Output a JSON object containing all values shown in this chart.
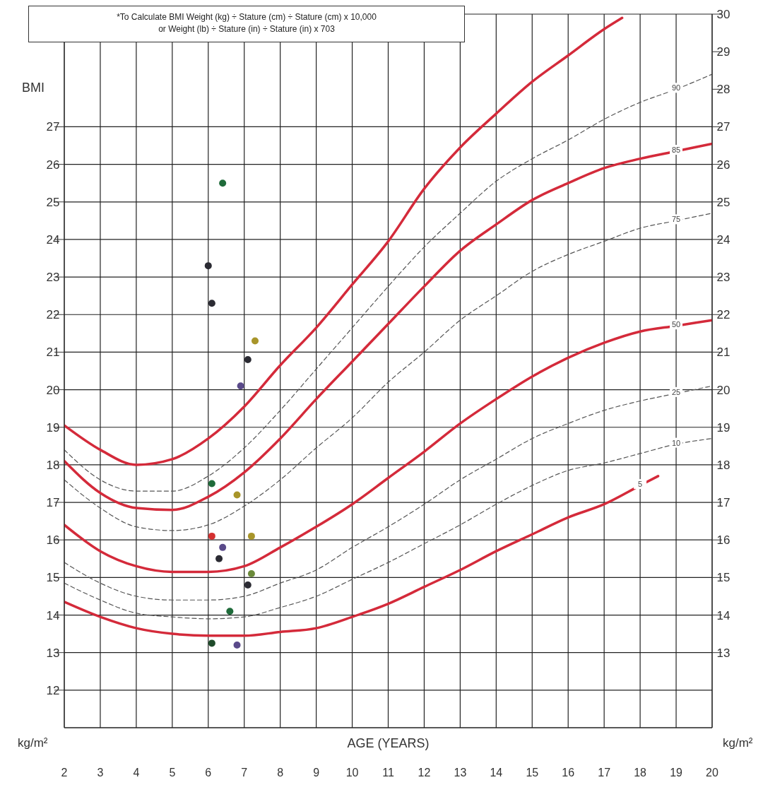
{
  "chart_data": {
    "type": "line",
    "xlabel": "AGE (YEARS)",
    "ylabel": "BMI",
    "y2label": "kg/m²",
    "annotations": [
      "*To Calculate BMI  Weight (kg) ÷ Stature (cm) ÷ Stature (cm) x 10,000",
      "or Weight (lb) ÷ Stature (in) ÷ Stature (in) x 703",
      "kg/m²"
    ],
    "xlim": [
      2,
      20
    ],
    "xticks": [
      2,
      3,
      4,
      5,
      6,
      7,
      8,
      9,
      10,
      11,
      12,
      13,
      14,
      15,
      16,
      17,
      18,
      19,
      20
    ],
    "ylim": [
      11,
      30
    ],
    "yticks": [
      12,
      13,
      14,
      15,
      16,
      17,
      18,
      19,
      20,
      21,
      22,
      23,
      24,
      25,
      26,
      27
    ],
    "y2lim": [
      11,
      30
    ],
    "y2ticks": [
      13,
      14,
      15,
      16,
      17,
      18,
      19,
      20,
      21,
      22,
      23,
      24,
      25,
      26,
      27,
      28,
      29,
      30
    ],
    "grid": true,
    "series": [
      {
        "type": "line",
        "line_style": "solid",
        "color": "#d42a3a",
        "x": [
          2,
          3,
          4,
          5,
          6,
          7,
          8,
          9,
          10,
          11,
          12,
          13,
          14,
          15,
          16,
          17,
          17.5
        ],
        "values": [
          19.05,
          18.4,
          18.0,
          18.15,
          18.7,
          19.55,
          20.65,
          21.65,
          22.8,
          23.95,
          25.35,
          26.45,
          27.35,
          28.2,
          28.9,
          29.6,
          29.9
        ]
      },
      {
        "type": "line",
        "name": "90",
        "line_style": "dashed",
        "color": "#555555",
        "x": [
          2,
          3,
          4,
          5,
          6,
          7,
          8,
          9,
          10,
          11,
          12,
          13,
          14,
          15,
          16,
          17,
          18,
          19,
          20
        ],
        "values": [
          18.4,
          17.6,
          17.3,
          17.3,
          17.7,
          18.45,
          19.45,
          20.55,
          21.65,
          22.75,
          23.8,
          24.7,
          25.55,
          26.15,
          26.65,
          27.2,
          27.65,
          28.0,
          28.4
        ]
      },
      {
        "type": "line",
        "name": "85",
        "line_style": "solid",
        "color": "#d42a3a",
        "x": [
          2,
          3,
          4,
          5,
          6,
          7,
          8,
          9,
          10,
          11,
          12,
          13,
          14,
          15,
          16,
          17,
          18,
          19,
          20
        ],
        "values": [
          18.1,
          17.25,
          16.85,
          16.8,
          17.15,
          17.8,
          18.7,
          19.75,
          20.75,
          21.75,
          22.75,
          23.7,
          24.4,
          25.05,
          25.5,
          25.9,
          26.15,
          26.35,
          26.55
        ]
      },
      {
        "type": "line",
        "name": "75",
        "line_style": "dashed",
        "color": "#555555",
        "x": [
          2,
          3,
          4,
          5,
          6,
          7,
          8,
          9,
          10,
          11,
          12,
          13,
          14,
          15,
          16,
          17,
          18,
          19,
          20
        ],
        "values": [
          17.6,
          16.85,
          16.35,
          16.25,
          16.4,
          16.9,
          17.6,
          18.45,
          19.25,
          20.2,
          21.0,
          21.85,
          22.5,
          23.15,
          23.6,
          23.95,
          24.3,
          24.5,
          24.7
        ]
      },
      {
        "type": "line",
        "name": "50",
        "line_style": "solid",
        "color": "#d42a3a",
        "x": [
          2,
          3,
          4,
          5,
          6,
          7,
          8,
          9,
          10,
          11,
          12,
          13,
          14,
          15,
          16,
          17,
          18,
          19,
          20
        ],
        "values": [
          16.4,
          15.7,
          15.3,
          15.15,
          15.15,
          15.3,
          15.8,
          16.35,
          16.95,
          17.65,
          18.35,
          19.1,
          19.75,
          20.35,
          20.85,
          21.25,
          21.55,
          21.7,
          21.85
        ]
      },
      {
        "type": "line",
        "name": "25",
        "line_style": "dashed",
        "color": "#555555",
        "x": [
          2,
          3,
          4,
          5,
          6,
          7,
          8,
          9,
          10,
          11,
          12,
          13,
          14,
          15,
          16,
          17,
          18,
          19,
          20
        ],
        "values": [
          15.4,
          14.85,
          14.5,
          14.4,
          14.4,
          14.5,
          14.85,
          15.2,
          15.8,
          16.35,
          16.95,
          17.6,
          18.15,
          18.7,
          19.1,
          19.45,
          19.7,
          19.9,
          20.1
        ]
      },
      {
        "type": "line",
        "name": "10",
        "line_style": "dashed",
        "color": "#555555",
        "x": [
          2,
          3,
          4,
          5,
          6,
          7,
          8,
          9,
          10,
          11,
          12,
          13,
          14,
          15,
          16,
          17,
          18,
          19,
          20
        ],
        "values": [
          14.85,
          14.4,
          14.05,
          13.95,
          13.9,
          13.95,
          14.2,
          14.5,
          14.95,
          15.4,
          15.9,
          16.4,
          16.95,
          17.45,
          17.85,
          18.05,
          18.3,
          18.55,
          18.7
        ]
      },
      {
        "type": "line",
        "name": "5",
        "line_style": "solid",
        "color": "#d42a3a",
        "x": [
          2,
          3,
          4,
          5,
          6,
          7,
          8,
          9,
          10,
          11,
          12,
          13,
          14,
          15,
          16,
          17,
          18,
          18.5
        ],
        "values": [
          14.35,
          13.95,
          13.65,
          13.5,
          13.45,
          13.45,
          13.55,
          13.65,
          13.95,
          14.3,
          14.75,
          15.2,
          15.7,
          16.15,
          16.6,
          16.95,
          17.45,
          17.7
        ]
      },
      {
        "type": "scatter",
        "marker": "circle",
        "color": "#2b2b33",
        "x": [
          6.4,
          6.0,
          6.1,
          7.3,
          7.1,
          6.9,
          6.1,
          6.8,
          6.1,
          7.2,
          6.4,
          6.3,
          7.2,
          7.1,
          6.6,
          6.1,
          6.8
        ],
        "values": [
          25.5,
          23.3,
          22.3,
          21.3,
          20.8,
          20.1,
          17.5,
          17.2,
          16.1,
          16.1,
          15.8,
          15.5,
          15.1,
          14.8,
          14.1,
          13.25,
          13.2
        ],
        "colors": [
          "#1f6b3a",
          "#2b2b33",
          "#2b2b33",
          "#a8952a",
          "#2b2b33",
          "#5a4a8a",
          "#1f6b3a",
          "#a8952a",
          "#d43030",
          "#a8952a",
          "#5a4a8a",
          "#2b2b33",
          "#6b8a3a",
          "#2b2b33",
          "#1f6b3a",
          "#1f4b2a",
          "#5a4a8a"
        ]
      }
    ]
  }
}
